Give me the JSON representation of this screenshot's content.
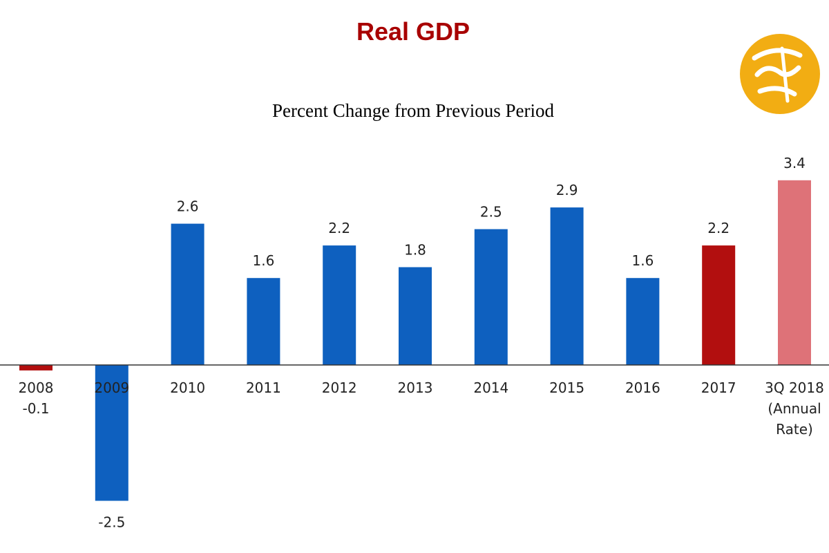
{
  "colors": {
    "title": "#a80000",
    "baseline": "#333333",
    "logo": "#f2ad13"
  },
  "chart_data": {
    "type": "bar",
    "title": "Real GDP",
    "subtitle": "Percent Change from Previous Period",
    "categories": [
      "2008",
      "2009",
      "2010",
      "2011",
      "2012",
      "2013",
      "2014",
      "2015",
      "2016",
      "2017",
      "3Q 2018 (Annual Rate)"
    ],
    "category_lines": [
      [
        "2008"
      ],
      [
        "2009"
      ],
      [
        "2010"
      ],
      [
        "2011"
      ],
      [
        "2012"
      ],
      [
        "2013"
      ],
      [
        "2014"
      ],
      [
        "2015"
      ],
      [
        "2016"
      ],
      [
        "2017"
      ],
      [
        "3Q 2018",
        "(Annual",
        "Rate)"
      ]
    ],
    "values": [
      -0.1,
      -2.5,
      2.6,
      1.6,
      2.2,
      1.8,
      2.5,
      2.9,
      1.6,
      2.2,
      3.4
    ],
    "value_labels": [
      "-0.1",
      "-2.5",
      "2.6",
      "1.6",
      "2.2",
      "1.8",
      "2.5",
      "2.9",
      "1.6",
      "2.2",
      "3.4"
    ],
    "bar_colors": [
      "#b20f0f",
      "#0e60bf",
      "#0e60bf",
      "#0e60bf",
      "#0e60bf",
      "#0e60bf",
      "#0e60bf",
      "#0e60bf",
      "#0e60bf",
      "#b20f0f",
      "#de7278"
    ],
    "ylim": [
      -2.5,
      3.4
    ],
    "xlabel": "",
    "ylabel": "",
    "grid": false,
    "legend": "none"
  }
}
